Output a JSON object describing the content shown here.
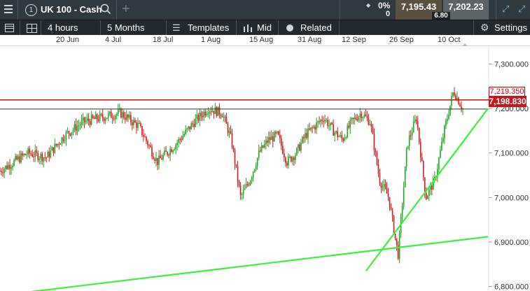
{
  "header": {
    "menu_icon": "hamburger-menu-icon",
    "slot_number": "1",
    "instrument": "UK 100 - Cash",
    "search_icon": "search-icon",
    "add_icon": "plus-icon",
    "change_pct": "0%",
    "change_val": "0",
    "sell_price": "7,195.43",
    "spread": "6.80",
    "buy_price": "7,202.23",
    "expand_icon": "expand-icon",
    "window_icon": "window-popout-icon"
  },
  "toolbar": {
    "interval": "4 hours",
    "period": "5 Months",
    "templates": "Templates",
    "price_type": "Mid",
    "related": "Related",
    "settings": "Settings"
  },
  "dates": [
    "20 Jun",
    "4 Jul",
    "18 Jul",
    "1 Aug",
    "15 Aug",
    "31 Aug",
    "12 Sep",
    "26 Sep",
    "10 Oct"
  ],
  "chart_data": {
    "type": "candlestick",
    "y_ticks": [
      "7,300.000",
      "7,200.000",
      "7,100.000",
      "7,000.000",
      "6,900.000",
      "6,800.000"
    ],
    "ylim": [
      6790,
      7340
    ],
    "series": [
      {
        "name": "price-path",
        "x": [
          0,
          6,
          10,
          14,
          18,
          22,
          26,
          30,
          34,
          38,
          42,
          45,
          48,
          50,
          52,
          54,
          56,
          58,
          60,
          62,
          64,
          66,
          68,
          70,
          72,
          74,
          76,
          78,
          80,
          82,
          84,
          86,
          88,
          90,
          92,
          94,
          96,
          98,
          100
        ],
        "values": [
          7060,
          7100,
          7090,
          7140,
          7170,
          7180,
          7190,
          7160,
          7080,
          7120,
          7170,
          7200,
          7190,
          7130,
          7000,
          7040,
          7100,
          7130,
          7140,
          7080,
          7100,
          7140,
          7160,
          7180,
          7150,
          7130,
          7170,
          7190,
          7170,
          7040,
          7000,
          6870,
          7120,
          7180,
          7000,
          7040,
          7150,
          7240,
          7199
        ]
      }
    ],
    "lines": {
      "resistance": 7219.35,
      "last": 7198.83,
      "support_long": {
        "from": [
          0,
          6780
        ],
        "to": [
          100,
          6912
        ]
      },
      "support_short": {
        "from": [
          75,
          6835
        ],
        "to": [
          100,
          7200
        ]
      }
    },
    "last_label": "7,198.830",
    "resistance_label": "7,219.350",
    "grid": false
  }
}
